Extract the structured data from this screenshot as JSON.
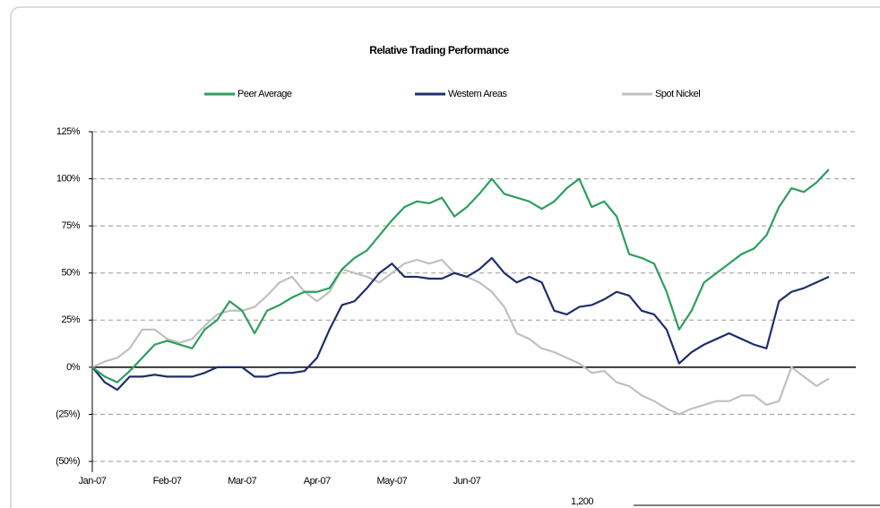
{
  "chart_data": {
    "type": "line",
    "title": "Relative Trading Performance",
    "categories": [
      "Jan-07",
      null,
      null,
      null,
      null,
      null,
      "Feb-07",
      null,
      null,
      null,
      null,
      null,
      "Mar-07",
      null,
      null,
      null,
      null,
      null,
      "Apr-07",
      null,
      null,
      null,
      null,
      null,
      "May-07",
      null,
      null,
      null,
      null,
      null,
      "Jun-07",
      null,
      null,
      null,
      null,
      null,
      null,
      null,
      null,
      null,
      null,
      null,
      null,
      null,
      null,
      null,
      null,
      null,
      null,
      null,
      null,
      null,
      null,
      null,
      null,
      null,
      null,
      null,
      null,
      null
    ],
    "series": [
      {
        "name": "Peer Average",
        "color": "#2e9e5e",
        "values": [
          0,
          -5,
          -8,
          -2,
          5,
          12,
          14,
          12,
          10,
          20,
          25,
          35,
          30,
          18,
          30,
          33,
          37,
          40,
          40,
          42,
          52,
          58,
          62,
          70,
          78,
          85,
          88,
          87,
          90,
          80,
          85,
          92,
          100,
          92,
          90,
          88,
          84,
          88,
          95,
          100,
          85,
          88,
          80,
          60,
          58,
          55,
          40,
          20,
          30,
          45,
          50,
          55,
          60,
          63,
          70,
          85,
          95,
          93,
          98,
          105
        ]
      },
      {
        "name": "Western Areas",
        "color": "#1f2f6b",
        "values": [
          0,
          -8,
          -12,
          -5,
          -5,
          -4,
          -5,
          -5,
          -5,
          -3,
          0,
          0,
          0,
          -5,
          -5,
          -3,
          -3,
          -2,
          5,
          20,
          33,
          35,
          42,
          50,
          55,
          48,
          48,
          47,
          47,
          50,
          48,
          52,
          58,
          50,
          45,
          48,
          45,
          30,
          28,
          32,
          33,
          36,
          40,
          38,
          30,
          28,
          20,
          2,
          8,
          12,
          15,
          18,
          15,
          12,
          10,
          35,
          40,
          42,
          45,
          48
        ]
      },
      {
        "name": "Spot Nickel",
        "color": "#c0c0c0",
        "values": [
          0,
          3,
          5,
          10,
          20,
          20,
          15,
          13,
          15,
          22,
          28,
          30,
          30,
          32,
          38,
          45,
          48,
          40,
          35,
          40,
          52,
          50,
          48,
          45,
          50,
          55,
          57,
          55,
          57,
          50,
          48,
          45,
          40,
          32,
          18,
          15,
          10,
          8,
          5,
          2,
          -3,
          -2,
          -8,
          -10,
          -15,
          -18,
          -22,
          -25,
          -22,
          -20,
          -18,
          -18,
          -15,
          -15,
          -20,
          -18,
          0,
          -5,
          -10,
          -6
        ]
      }
    ],
    "ylim": [
      -50,
      125
    ],
    "yticks": [
      {
        "value": -50,
        "label": "(50%)"
      },
      {
        "value": -25,
        "label": "(25%)"
      },
      {
        "value": 0,
        "label": "0%"
      },
      {
        "value": 25,
        "label": "25%"
      },
      {
        "value": 50,
        "label": "50%"
      },
      {
        "value": 75,
        "label": "75%"
      },
      {
        "value": 100,
        "label": "100%"
      },
      {
        "value": 125,
        "label": "125%"
      }
    ],
    "grid": true
  },
  "fragment_label": "1,200"
}
